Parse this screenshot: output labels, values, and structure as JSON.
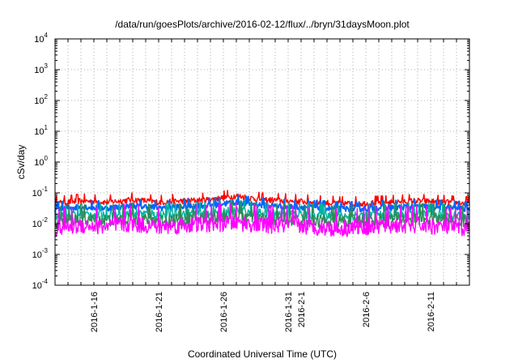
{
  "chart_data": {
    "type": "line",
    "title": "/data/run/goesPlots/archive/2016-02-12/flux/../bryn/31daysMoon.plot",
    "xlabel": "Coordinated Universal Time (UTC)",
    "ylabel": "cSv/day",
    "yscale": "log",
    "ylim": [
      0.0001,
      10000
    ],
    "xlim": [
      "2016-01-13",
      "2016-02-14"
    ],
    "grid": true,
    "y_ticks": [
      {
        "base": "10",
        "exp": "-4"
      },
      {
        "base": "10",
        "exp": "-3"
      },
      {
        "base": "10",
        "exp": "-2"
      },
      {
        "base": "10",
        "exp": "-1"
      },
      {
        "base": "10",
        "exp": "0"
      },
      {
        "base": "10",
        "exp": "1"
      },
      {
        "base": "10",
        "exp": "2"
      },
      {
        "base": "10",
        "exp": "3"
      },
      {
        "base": "10",
        "exp": "4"
      }
    ],
    "x_ticks": [
      {
        "label": "2016-1-16",
        "date": "2016-01-16"
      },
      {
        "label": "2016-1-21",
        "date": "2016-01-21"
      },
      {
        "label": "2016-1-26",
        "date": "2016-01-26"
      },
      {
        "label": "2016-1-31",
        "date": "2016-01-31"
      },
      {
        "label": "2016-2-1",
        "date": "2016-02-01"
      },
      {
        "label": "2016-2-6",
        "date": "2016-02-06"
      },
      {
        "label": "2016-2-11",
        "date": "2016-02-11"
      }
    ],
    "series": [
      {
        "color": "#ff0000",
        "dates": [
          "2016-01-13",
          "2016-01-15",
          "2016-01-17",
          "2016-01-19",
          "2016-01-21",
          "2016-01-23",
          "2016-01-25",
          "2016-01-27",
          "2016-01-29",
          "2016-01-31",
          "2016-02-02",
          "2016-02-04",
          "2016-02-06",
          "2016-02-08",
          "2016-02-10",
          "2016-02-12",
          "2016-02-14"
        ],
        "values": [
          0.045,
          0.055,
          0.05,
          0.06,
          0.05,
          0.055,
          0.06,
          0.08,
          0.06,
          0.055,
          0.05,
          0.045,
          0.045,
          0.05,
          0.055,
          0.05,
          0.045
        ]
      },
      {
        "color": "#0066ff",
        "dates": [
          "2016-01-13",
          "2016-01-15",
          "2016-01-17",
          "2016-01-19",
          "2016-01-21",
          "2016-01-23",
          "2016-01-25",
          "2016-01-27",
          "2016-01-29",
          "2016-01-31",
          "2016-02-02",
          "2016-02-04",
          "2016-02-06",
          "2016-02-08",
          "2016-02-10",
          "2016-02-12",
          "2016-02-14"
        ],
        "values": [
          0.03,
          0.035,
          0.032,
          0.038,
          0.033,
          0.036,
          0.04,
          0.05,
          0.04,
          0.036,
          0.034,
          0.03,
          0.031,
          0.034,
          0.036,
          0.034,
          0.03
        ]
      },
      {
        "color": "#00b3a0",
        "dates": [
          "2016-01-13",
          "2016-01-15",
          "2016-01-17",
          "2016-01-19",
          "2016-01-21",
          "2016-01-23",
          "2016-01-25",
          "2016-01-27",
          "2016-01-29",
          "2016-01-31",
          "2016-02-02",
          "2016-02-04",
          "2016-02-06",
          "2016-02-08",
          "2016-02-10",
          "2016-02-12",
          "2016-02-14"
        ],
        "values": [
          0.018,
          0.02,
          0.019,
          0.022,
          0.02,
          0.021,
          0.023,
          0.026,
          0.022,
          0.021,
          0.02,
          0.018,
          0.019,
          0.02,
          0.021,
          0.02,
          0.018
        ]
      },
      {
        "color": "#2e8b57",
        "dates": [
          "2016-01-13",
          "2016-01-15",
          "2016-01-17",
          "2016-01-19",
          "2016-01-21",
          "2016-01-23",
          "2016-01-25",
          "2016-01-27",
          "2016-01-29",
          "2016-01-31",
          "2016-02-02",
          "2016-02-04",
          "2016-02-06",
          "2016-02-08",
          "2016-02-10",
          "2016-02-12",
          "2016-02-14"
        ],
        "values": [
          0.012,
          0.014,
          0.013,
          0.015,
          0.013,
          0.014,
          0.016,
          0.018,
          0.015,
          0.014,
          0.013,
          0.012,
          0.013,
          0.014,
          0.015,
          0.014,
          0.012
        ]
      },
      {
        "color": "#ff00ff",
        "dates": [
          "2016-01-13",
          "2016-01-15",
          "2016-01-17",
          "2016-01-19",
          "2016-01-21",
          "2016-01-23",
          "2016-01-25",
          "2016-01-27",
          "2016-01-29",
          "2016-01-31",
          "2016-02-02",
          "2016-02-04",
          "2016-02-06",
          "2016-02-08",
          "2016-02-10",
          "2016-02-12",
          "2016-02-14"
        ],
        "values": [
          0.007,
          0.009,
          0.008,
          0.01,
          0.008,
          0.009,
          0.01,
          0.011,
          0.009,
          0.009,
          0.008,
          0.007,
          0.008,
          0.009,
          0.009,
          0.008,
          0.007
        ]
      }
    ]
  }
}
